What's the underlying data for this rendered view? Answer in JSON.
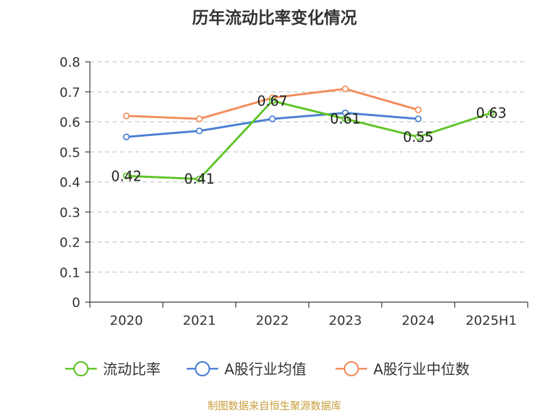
{
  "chart_data": {
    "type": "line",
    "title": "历年流动比率变化情况",
    "categories": [
      "2020",
      "2021",
      "2022",
      "2023",
      "2024",
      "2025H1"
    ],
    "ylim": [
      0,
      0.8
    ],
    "yticks": [
      "0",
      "0.1",
      "0.2",
      "0.3",
      "0.4",
      "0.5",
      "0.6",
      "0.7",
      "0.8"
    ],
    "grid": true,
    "legend_position": "bottom",
    "series": [
      {
        "name": "流动比率",
        "color": "#5ec426",
        "values": [
          0.42,
          0.41,
          0.67,
          0.61,
          0.55,
          0.63
        ],
        "labels": [
          "0.42",
          "0.41",
          "0.67",
          "0.61",
          "0.55",
          "0.63"
        ]
      },
      {
        "name": "A股行业均值",
        "color": "#4a7fd4",
        "values": [
          0.55,
          0.57,
          0.61,
          0.63,
          0.61,
          null
        ]
      },
      {
        "name": "A股行业中位数",
        "color": "#f28c5a",
        "values": [
          0.62,
          0.61,
          0.68,
          0.71,
          0.64,
          null
        ]
      }
    ],
    "source": "制图数据来自恒生聚源数据库"
  }
}
